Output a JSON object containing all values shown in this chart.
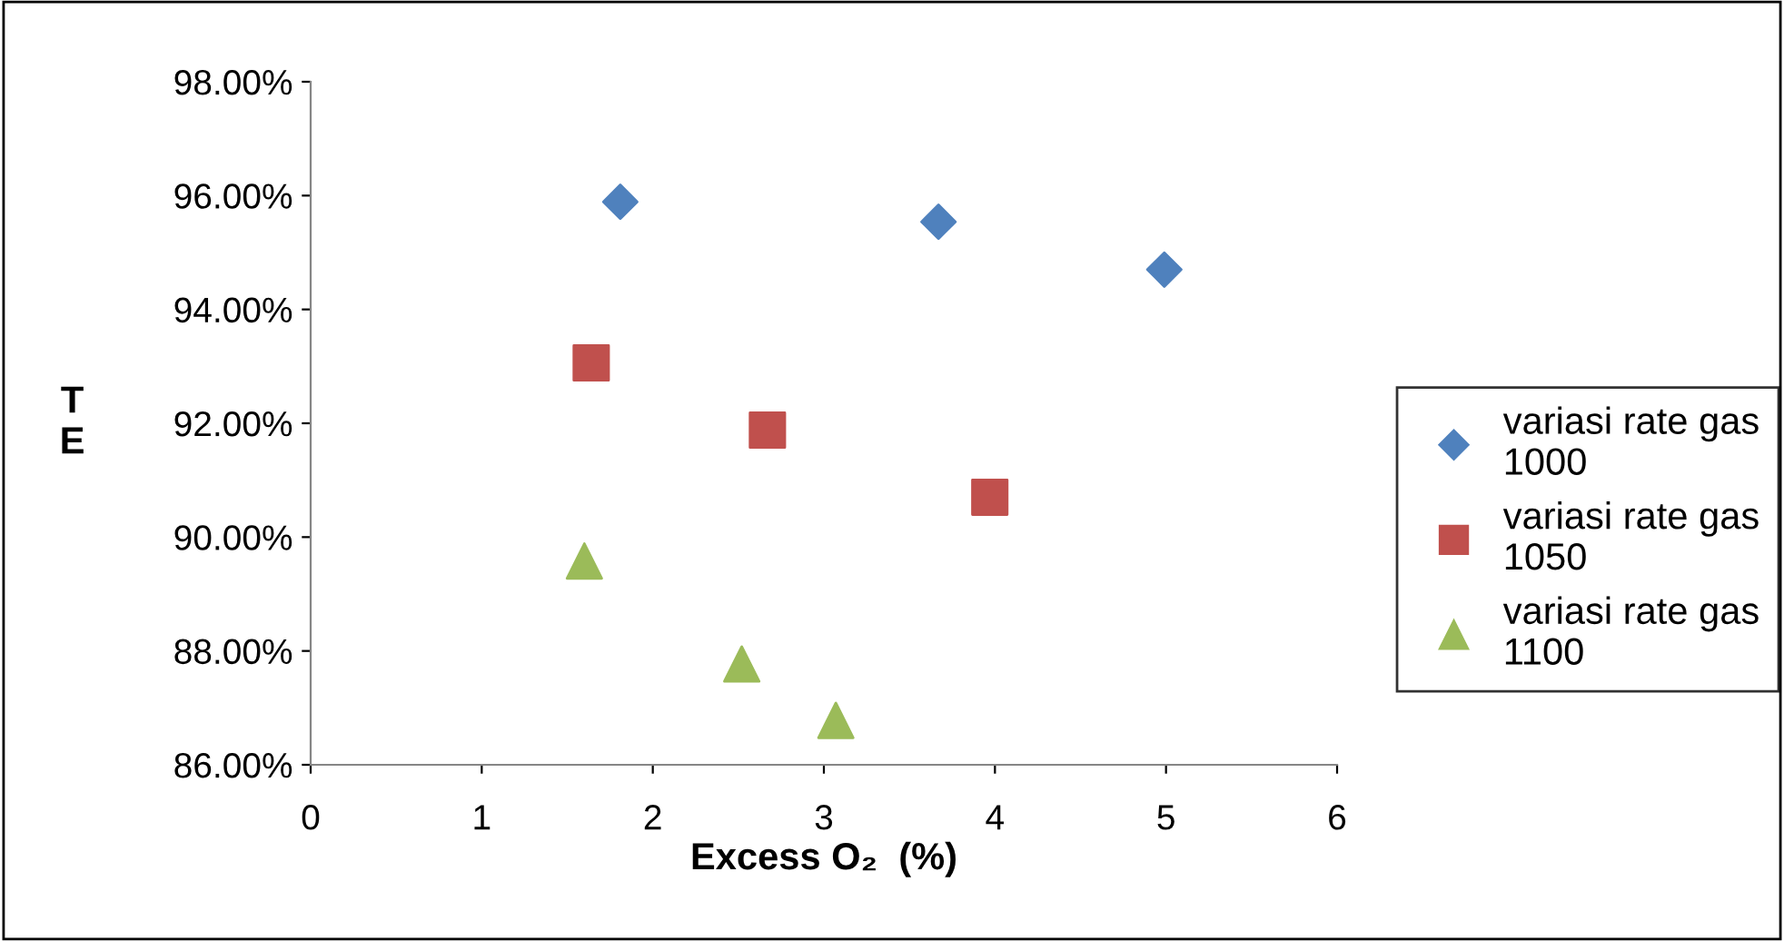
{
  "chart_data": {
    "type": "scatter",
    "xlabel": "Excess O₂  (%)",
    "ylabel": "TE",
    "series": [
      {
        "name": "variasi rate gas 1000",
        "color": "#4f81bd",
        "marker": "diamond",
        "x": [
          1.81,
          3.67,
          4.99
        ],
        "values": [
          95.89,
          95.54,
          94.7
        ]
      },
      {
        "name": "variasi rate gas 1050",
        "color": "#c0504d",
        "marker": "square",
        "x": [
          1.64,
          2.67,
          3.97
        ],
        "values": [
          93.06,
          91.88,
          90.7
        ]
      },
      {
        "name": "variasi rate gas 1100",
        "color": "#9bbb59",
        "marker": "triangle",
        "x": [
          1.6,
          2.52,
          3.07
        ],
        "values": [
          89.58,
          87.77,
          86.78
        ]
      }
    ],
    "xlim": [
      0,
      6
    ],
    "xticks": [
      0,
      1,
      2,
      3,
      4,
      5,
      6
    ],
    "ylim": [
      86,
      98
    ],
    "yticks": [
      {
        "value": 86,
        "label": "86.00%"
      },
      {
        "value": 88,
        "label": "88.00%"
      },
      {
        "value": 90,
        "label": "90.00%"
      },
      {
        "value": 92,
        "label": "92.00%"
      },
      {
        "value": 94,
        "label": "94.00%"
      },
      {
        "value": 96,
        "label": "96.00%"
      },
      {
        "value": 98,
        "label": "98.00%"
      }
    ],
    "grid": false,
    "legend": "right"
  }
}
